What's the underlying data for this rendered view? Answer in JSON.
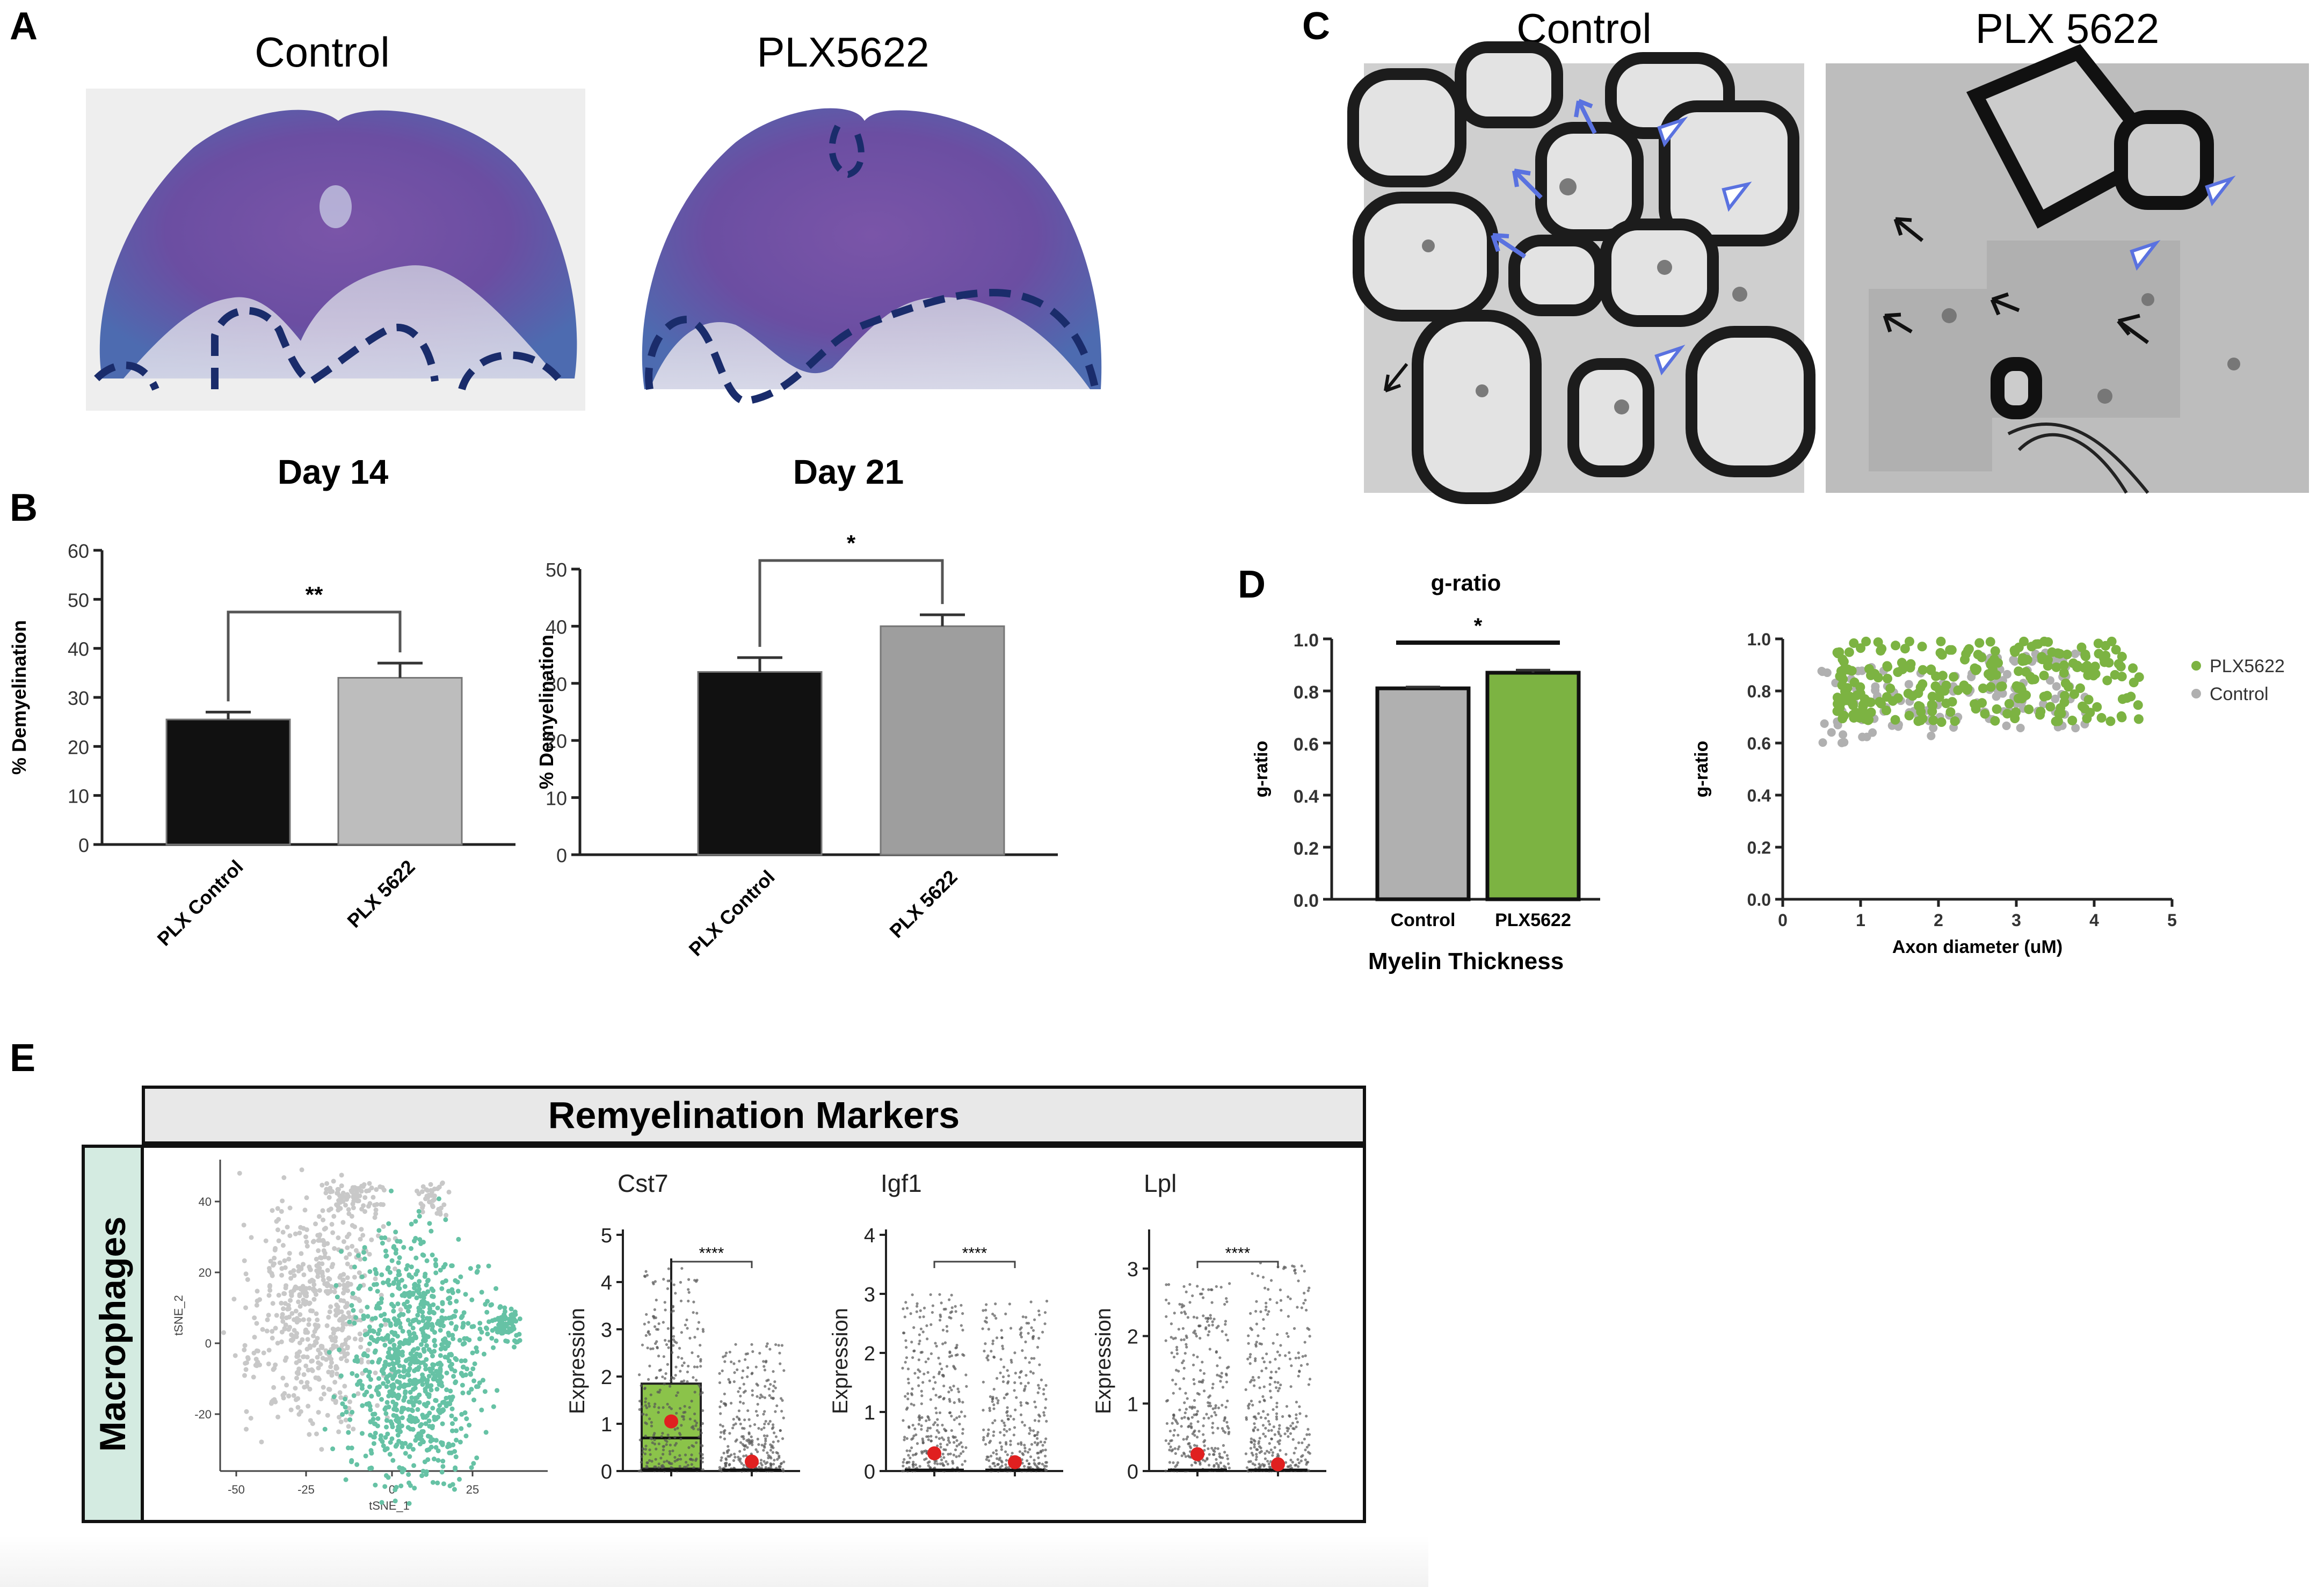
{
  "panels": {
    "a": {
      "label": "A",
      "titles": [
        "Control",
        "PLX5622"
      ]
    },
    "b": {
      "label": "B",
      "day_titles": [
        "Day 14",
        "Day 21"
      ]
    },
    "c": {
      "label": "C",
      "titles": [
        "Control",
        "PLX 5622"
      ]
    },
    "d": {
      "label": "D"
    },
    "e": {
      "label": "E",
      "header": "Remyelination Markers",
      "row_label": "Macrophages"
    }
  },
  "chart_data": [
    {
      "id": "b-day14",
      "type": "bar",
      "title": "Day 14",
      "categories": [
        "PLX Control",
        "PLX 5622"
      ],
      "values": [
        25.5,
        34
      ],
      "errors": [
        1.5,
        3
      ],
      "colors": [
        "#111111",
        "#bdbdbd"
      ],
      "ylabel": "% Demyelination",
      "ylim": [
        0,
        60
      ],
      "yticks": [
        0,
        10,
        20,
        30,
        40,
        50,
        60
      ],
      "significance": "**"
    },
    {
      "id": "b-day21",
      "type": "bar",
      "title": "Day 21",
      "categories": [
        "PLX Control",
        "PLX 5622"
      ],
      "values": [
        32,
        40
      ],
      "errors": [
        2.5,
        2
      ],
      "colors": [
        "#111111",
        "#9e9e9e"
      ],
      "ylabel": "% Demyelination",
      "ylim": [
        0,
        50
      ],
      "yticks": [
        0,
        10,
        20,
        30,
        40,
        50
      ],
      "significance": "*"
    },
    {
      "id": "d-gratio-bar",
      "type": "bar",
      "title": "g-ratio",
      "categories": [
        "Control",
        "PLX5622"
      ],
      "values": [
        0.81,
        0.87
      ],
      "errors": [
        0.005,
        0.01
      ],
      "colors": [
        "#b0b0b0",
        "#7cb342"
      ],
      "ylabel": "g-ratio",
      "xlabel": "Myelin Thickness",
      "ylim": [
        0,
        1.0
      ],
      "yticks": [
        "0.0",
        "0.2",
        "0.4",
        "0.6",
        "0.8",
        "1.0"
      ],
      "significance": "*"
    },
    {
      "id": "d-scatter",
      "type": "scatter",
      "xlabel": "Axon diameter (uM)",
      "ylabel": "g-ratio",
      "xlim": [
        0,
        5
      ],
      "ylim": [
        0,
        1.0
      ],
      "xticks": [
        "0",
        "1",
        "2",
        "3",
        "4",
        "5"
      ],
      "yticks": [
        "0.0",
        "0.2",
        "0.4",
        "0.6",
        "0.8",
        "1.0"
      ],
      "legend_position": "right",
      "series": [
        {
          "name": "PLX5622",
          "color": "#7cb342"
        },
        {
          "name": "Control",
          "color": "#b0b0b0"
        }
      ]
    },
    {
      "id": "e-tsne",
      "type": "scatter",
      "xlabel": "tSNE_1",
      "ylabel": "tSNE_2",
      "xticks": [
        "-50",
        "-25",
        "0",
        "25"
      ],
      "yticks": [
        "40",
        "20",
        "0",
        "-20"
      ],
      "colors": [
        "#c8c8c8",
        "#66c2a5"
      ]
    },
    {
      "id": "e-cst7",
      "type": "box",
      "title": "Cst7",
      "ylabel": "Expression",
      "ylim": [
        0,
        5
      ],
      "yticks": [
        "0",
        "1",
        "2",
        "3",
        "4",
        "5"
      ],
      "significance": "****",
      "box": {
        "q1": 0.05,
        "median": 0.7,
        "q3": 1.85,
        "whisker_high": 4.5
      },
      "means": [
        1.05,
        0.2
      ]
    },
    {
      "id": "e-igf1",
      "type": "strip",
      "title": "Igf1",
      "ylabel": "Expression",
      "ylim": [
        0,
        4
      ],
      "yticks": [
        "0",
        "1",
        "2",
        "3",
        "4"
      ],
      "significance": "****",
      "means": [
        0.3,
        0.15
      ]
    },
    {
      "id": "e-lpl",
      "type": "strip",
      "title": "Lpl",
      "ylabel": "Expression",
      "ylim": [
        0,
        3.5
      ],
      "yticks": [
        "0",
        "1",
        "2",
        "3"
      ],
      "significance": "****",
      "means": [
        0.25,
        0.1
      ]
    }
  ]
}
